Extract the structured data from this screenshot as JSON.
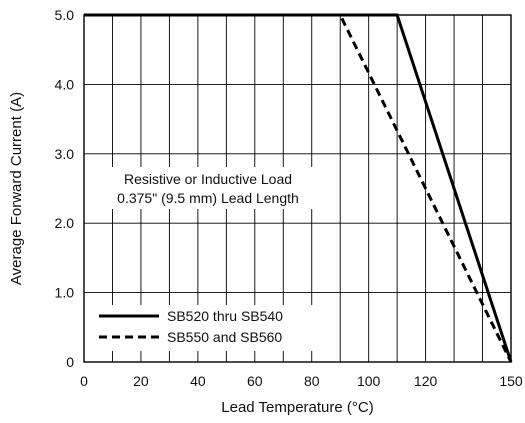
{
  "chart_data": {
    "type": "line",
    "xlabel": "Lead Temperature (°C)",
    "ylabel": "Average Forward Current (A)",
    "xlim": [
      0,
      150
    ],
    "ylim": [
      0,
      5
    ],
    "x_ticks": [
      0,
      20,
      40,
      60,
      80,
      100,
      120,
      150
    ],
    "x_tick_labels": [
      "0",
      "20",
      "40",
      "60",
      "80",
      "100",
      "120",
      "150"
    ],
    "y_ticks": [
      0,
      1,
      2,
      3,
      4,
      5
    ],
    "y_tick_labels": [
      "0",
      "1.0",
      "2.0",
      "3.0",
      "4.0",
      "5.0"
    ],
    "x_grid": [
      0,
      10,
      20,
      30,
      40,
      50,
      60,
      70,
      80,
      90,
      100,
      110,
      120,
      130,
      140,
      150
    ],
    "y_grid": [
      0,
      1,
      2,
      3,
      4,
      5
    ],
    "grid": true,
    "annotation": [
      "Resistive or Inductive Load",
      "0.375\" (9.5 mm) Lead Length"
    ],
    "legend_position": "bottom-left",
    "series": [
      {
        "name": "SB520 thru SB540",
        "style": "solid",
        "color": "#000000",
        "x": [
          0,
          110,
          150
        ],
        "y": [
          5.0,
          5.0,
          0
        ]
      },
      {
        "name": "SB550 and SB560",
        "style": "dashed",
        "color": "#000000",
        "x": [
          0,
          90,
          150
        ],
        "y": [
          5.0,
          5.0,
          0
        ]
      }
    ]
  }
}
